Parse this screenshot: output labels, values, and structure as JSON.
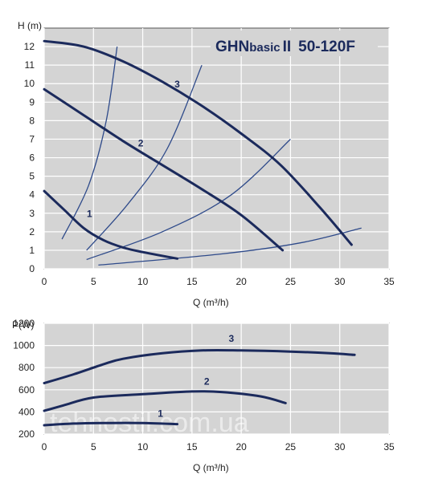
{
  "chart_data": [
    {
      "type": "line",
      "title_parts": {
        "brand": "GHN",
        "model_small": "basic",
        "model_suffix": "II",
        "size": "50-120F"
      },
      "ylabel": "H (m)",
      "xlabel": "Q (m³/h)",
      "xlim": [
        0,
        35
      ],
      "ylim": [
        0,
        13
      ],
      "xticks": [
        "0",
        "5",
        "10",
        "15",
        "20",
        "25",
        "30",
        "35"
      ],
      "yticks": [
        "0",
        "1",
        "2",
        "3",
        "4",
        "5",
        "6",
        "7",
        "8",
        "9",
        "10",
        "11",
        "12"
      ],
      "grid": true,
      "line_color": "#1b2a5c",
      "guide_color": "#2e4a8a",
      "background": "#d4d4d4",
      "series": [
        {
          "name": "1",
          "points": [
            [
              0,
              4.2
            ],
            [
              2,
              3.2
            ],
            [
              4,
              2.2
            ],
            [
              6,
              1.55
            ],
            [
              8,
              1.15
            ],
            [
              10,
              0.9
            ],
            [
              13.5,
              0.55
            ]
          ]
        },
        {
          "name": "2",
          "points": [
            [
              0,
              9.7
            ],
            [
              4,
              8.3
            ],
            [
              8,
              6.9
            ],
            [
              12,
              5.6
            ],
            [
              16,
              4.3
            ],
            [
              20,
              2.9
            ],
            [
              24.2,
              1.0
            ]
          ]
        },
        {
          "name": "3",
          "points": [
            [
              0,
              12.3
            ],
            [
              4,
              12.0
            ],
            [
              8,
              11.2
            ],
            [
              12,
              10.1
            ],
            [
              16,
              8.8
            ],
            [
              20,
              7.3
            ],
            [
              24,
              5.6
            ],
            [
              28,
              3.3
            ],
            [
              31.2,
              1.3
            ]
          ]
        }
      ],
      "curve_label_positions": [
        [
          4.6,
          2.8
        ],
        [
          9.8,
          6.6
        ],
        [
          13.5,
          9.8
        ]
      ],
      "system_curves": [
        [
          [
            1.8,
            1.6
          ],
          [
            4.5,
            4.5
          ],
          [
            6.3,
            8.0
          ],
          [
            7.4,
            12.0
          ]
        ],
        [
          [
            4.3,
            1.0
          ],
          [
            8.5,
            3.5
          ],
          [
            12.5,
            6.5
          ],
          [
            16.0,
            11.0
          ]
        ],
        [
          [
            4.3,
            0.5
          ],
          [
            12.0,
            2.0
          ],
          [
            19.0,
            4.0
          ],
          [
            25.0,
            7.0
          ]
        ],
        [
          [
            5.5,
            0.2
          ],
          [
            18.0,
            0.8
          ],
          [
            26.0,
            1.4
          ],
          [
            32.2,
            2.2
          ]
        ]
      ]
    },
    {
      "type": "line",
      "ylabel": "P(W)",
      "xlabel": "Q (m³/h)",
      "xlim": [
        0,
        35
      ],
      "ylim": [
        200,
        1200
      ],
      "xticks": [
        "0",
        "5",
        "10",
        "15",
        "20",
        "25",
        "30",
        "35"
      ],
      "yticks": [
        "200",
        "400",
        "600",
        "800",
        "1000",
        "1200"
      ],
      "grid": true,
      "line_color": "#1b2a5c",
      "background": "#d4d4d4",
      "series": [
        {
          "name": "1",
          "points": [
            [
              0,
              280
            ],
            [
              3,
              295
            ],
            [
              6,
              300
            ],
            [
              10,
              300
            ],
            [
              13.5,
              290
            ]
          ]
        },
        {
          "name": "2",
          "points": [
            [
              0,
              410
            ],
            [
              2,
              460
            ],
            [
              5,
              530
            ],
            [
              10,
              560
            ],
            [
              15,
              585
            ],
            [
              18,
              580
            ],
            [
              22,
              540
            ],
            [
              24.5,
              480
            ]
          ]
        },
        {
          "name": "3",
          "points": [
            [
              0,
              660
            ],
            [
              3,
              740
            ],
            [
              6,
              830
            ],
            [
              8,
              880
            ],
            [
              12,
              930
            ],
            [
              16,
              955
            ],
            [
              20,
              955
            ],
            [
              25,
              945
            ],
            [
              29,
              930
            ],
            [
              31.5,
              915
            ]
          ]
        }
      ],
      "curve_label_positions": [
        [
          11.8,
          355
        ],
        [
          16.5,
          645
        ],
        [
          19.0,
          1035
        ]
      ]
    }
  ],
  "watermark": "tehnostil.com.ua"
}
